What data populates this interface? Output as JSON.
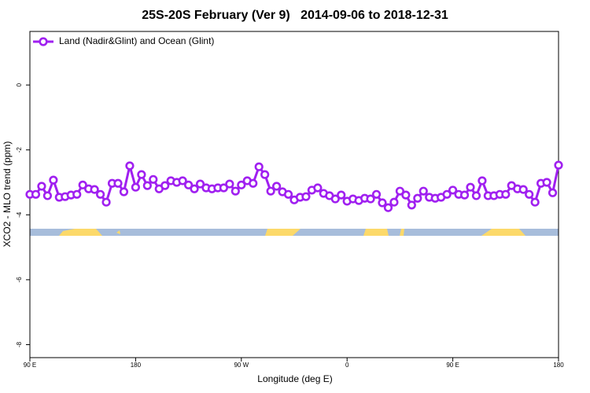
{
  "chart_data": {
    "type": "line",
    "title": "25S-20S February (Ver 9)   2014-09-06 to 2018-12-31",
    "x_label": "Longitude (deg E)",
    "y_label": "XCO2 - MLO trend (ppm)",
    "x": [
      90,
      95,
      100,
      105,
      110,
      115,
      120,
      125,
      130,
      135,
      140,
      145,
      150,
      155,
      160,
      165,
      170,
      175,
      180,
      185,
      190,
      195,
      200,
      205,
      210,
      215,
      220,
      225,
      230,
      235,
      240,
      245,
      250,
      255,
      260,
      265,
      270,
      275,
      280,
      285,
      290,
      295,
      300,
      305,
      310,
      315,
      320,
      325,
      330,
      335,
      340,
      345,
      350,
      355,
      360,
      365,
      370,
      375,
      380,
      385,
      390,
      395,
      400,
      405,
      410,
      415,
      420,
      425,
      430,
      435,
      440,
      445,
      450,
      455,
      460,
      465,
      470,
      475,
      480,
      485,
      490,
      495,
      500,
      505,
      510,
      515,
      520,
      525,
      530,
      535,
      540
    ],
    "series": [
      {
        "name": "Land (Nadir&Glint) and Ocean (Glint)",
        "color": "#a020f0",
        "values": [
          -3.37,
          -3.37,
          -3.12,
          -3.41,
          -2.93,
          -3.46,
          -3.44,
          -3.39,
          -3.37,
          -3.08,
          -3.2,
          -3.22,
          -3.37,
          -3.61,
          -3.03,
          -3.03,
          -3.29,
          -2.49,
          -3.15,
          -2.76,
          -3.1,
          -2.91,
          -3.2,
          -3.1,
          -2.95,
          -3.0,
          -2.95,
          -3.08,
          -3.2,
          -3.05,
          -3.17,
          -3.2,
          -3.17,
          -3.17,
          -3.05,
          -3.27,
          -3.08,
          -2.95,
          -3.03,
          -2.52,
          -2.76,
          -3.27,
          -3.12,
          -3.29,
          -3.37,
          -3.54,
          -3.46,
          -3.44,
          -3.24,
          -3.17,
          -3.34,
          -3.41,
          -3.51,
          -3.39,
          -3.58,
          -3.51,
          -3.56,
          -3.49,
          -3.51,
          -3.37,
          -3.63,
          -3.78,
          -3.61,
          -3.27,
          -3.39,
          -3.7,
          -3.49,
          -3.27,
          -3.46,
          -3.49,
          -3.46,
          -3.37,
          -3.24,
          -3.37,
          -3.39,
          -3.15,
          -3.41,
          -2.95,
          -3.41,
          -3.41,
          -3.37,
          -3.37,
          -3.1,
          -3.2,
          -3.22,
          -3.37,
          -3.61,
          -3.03,
          -3.0,
          -3.32,
          -2.47
        ]
      }
    ],
    "xlim": [
      90,
      540
    ],
    "ylim": [
      -8.4,
      1.65
    ],
    "xticks": [
      {
        "value": 90,
        "label": "90 E"
      },
      180,
      {
        "value": 270,
        "label": "90 W"
      },
      {
        "value": 360,
        "label": "0"
      },
      {
        "value": 450,
        "label": "90 E"
      },
      {
        "value": 540,
        "label": "180"
      }
    ],
    "yticks": [
      0,
      -2,
      -4,
      -6,
      -8
    ],
    "legend": "top-left"
  }
}
